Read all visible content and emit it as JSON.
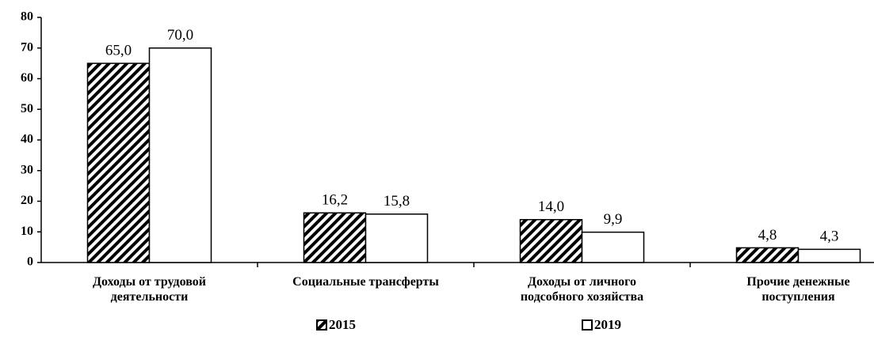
{
  "chart_data": {
    "type": "bar",
    "categories": [
      "Доходы от трудовой деятельности",
      "Социальные трансферты",
      "Доходы от личного подсобного хозяйства",
      "Прочие денежные поступления"
    ],
    "series": [
      {
        "name": "2015",
        "color": "#ffffff",
        "hatch": true,
        "values": [
          65.0,
          16.2,
          14.0,
          4.8
        ],
        "value_labels": [
          "65,0",
          "16,2",
          "14,0",
          "4,8"
        ]
      },
      {
        "name": "2019",
        "color": "#ffffff",
        "hatch": false,
        "values": [
          70.0,
          15.8,
          9.9,
          4.3
        ],
        "value_labels": [
          "70,0",
          "15,8",
          "9,9",
          "4,3"
        ]
      }
    ],
    "ylim": [
      0,
      80
    ],
    "yticks": [
      0,
      10,
      20,
      30,
      40,
      50,
      60,
      70,
      80
    ],
    "grid": false,
    "legend": "bottom"
  }
}
